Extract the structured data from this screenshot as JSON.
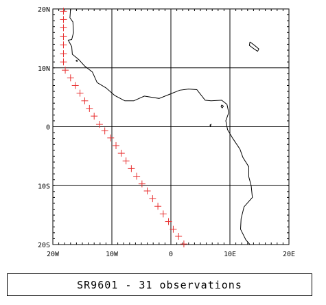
{
  "map": {
    "lon_range": [
      -20,
      20
    ],
    "lat_range": [
      -20,
      20
    ],
    "lon_ticks": [
      {
        "value": -20,
        "label": "20W"
      },
      {
        "value": -10,
        "label": "10W"
      },
      {
        "value": 0,
        "label": "0"
      },
      {
        "value": 10,
        "label": "10E"
      },
      {
        "value": 20,
        "label": "20E"
      }
    ],
    "lat_ticks": [
      {
        "value": 20,
        "label": "20N"
      },
      {
        "value": 10,
        "label": "10N"
      },
      {
        "value": 0,
        "label": "0"
      },
      {
        "value": -10,
        "label": "10S"
      },
      {
        "value": -20,
        "label": "20S"
      }
    ],
    "grid": true,
    "minor_tick_step_deg": 1,
    "colors": {
      "frame": "#000000",
      "coastline": "#000000",
      "observation_marker": "#e83030"
    },
    "marker_symbol": "plus",
    "observations_vertical": [
      [
        -18.2,
        19.6
      ],
      [
        -18.2,
        18.2
      ],
      [
        -18.2,
        16.8
      ],
      [
        -18.2,
        15.3
      ],
      [
        -18.2,
        13.9
      ],
      [
        -18.2,
        12.4
      ],
      [
        -18.2,
        11.0
      ]
    ],
    "observations_diagonal": [
      [
        -17.9,
        9.6
      ],
      [
        -17.0,
        8.3
      ],
      [
        -16.2,
        7.0
      ],
      [
        -15.4,
        5.7
      ],
      [
        -14.6,
        4.4
      ],
      [
        -13.8,
        3.1
      ],
      [
        -13.0,
        1.8
      ],
      [
        -12.1,
        0.4
      ],
      [
        -11.2,
        -0.7
      ],
      [
        -10.2,
        -1.9
      ],
      [
        -9.3,
        -3.2
      ],
      [
        -8.4,
        -4.5
      ],
      [
        -7.6,
        -5.8
      ],
      [
        -6.7,
        -7.1
      ],
      [
        -5.8,
        -8.4
      ],
      [
        -4.9,
        -9.7
      ],
      [
        -4.0,
        -10.9
      ],
      [
        -3.1,
        -12.2
      ],
      [
        -2.2,
        -13.5
      ],
      [
        -1.3,
        -14.8
      ],
      [
        -0.4,
        -16.1
      ],
      [
        0.4,
        -17.4
      ],
      [
        1.3,
        -18.6
      ],
      [
        2.2,
        -19.9
      ]
    ],
    "coastline": [
      [
        -17.0,
        20.0
      ],
      [
        -17.1,
        18.5
      ],
      [
        -16.6,
        17.8
      ],
      [
        -16.5,
        16.0
      ],
      [
        -16.8,
        14.8
      ],
      [
        -17.4,
        14.7
      ],
      [
        -16.8,
        13.6
      ],
      [
        -16.7,
        12.3
      ],
      [
        -15.6,
        11.4
      ],
      [
        -14.6,
        10.3
      ],
      [
        -13.3,
        9.3
      ],
      [
        -12.5,
        7.5
      ],
      [
        -11.0,
        6.6
      ],
      [
        -9.5,
        5.3
      ],
      [
        -7.8,
        4.4
      ],
      [
        -6.3,
        4.4
      ],
      [
        -4.5,
        5.2
      ],
      [
        -2.0,
        4.8
      ],
      [
        0.0,
        5.6
      ],
      [
        1.5,
        6.2
      ],
      [
        3.0,
        6.4
      ],
      [
        4.4,
        6.3
      ],
      [
        5.8,
        4.5
      ],
      [
        6.8,
        4.4
      ],
      [
        8.6,
        4.5
      ],
      [
        9.5,
        3.8
      ],
      [
        9.8,
        2.4
      ],
      [
        9.3,
        1.0
      ],
      [
        9.6,
        -0.5
      ],
      [
        10.5,
        -2.0
      ],
      [
        11.7,
        -3.8
      ],
      [
        12.2,
        -5.2
      ],
      [
        13.2,
        -6.8
      ],
      [
        13.2,
        -8.5
      ],
      [
        13.6,
        -10.0
      ],
      [
        13.8,
        -12.0
      ],
      [
        12.4,
        -13.6
      ],
      [
        11.9,
        -15.6
      ],
      [
        11.8,
        -17.4
      ],
      [
        12.7,
        -19.2
      ],
      [
        13.4,
        -20.0
      ]
    ],
    "islands": [
      {
        "name": "sao-tome",
        "points": [
          [
            6.6,
            0.3
          ],
          [
            6.8,
            0.4
          ],
          [
            6.7,
            0.1
          ],
          [
            6.6,
            0.3
          ]
        ]
      },
      {
        "name": "bioko",
        "points": [
          [
            8.6,
            3.7
          ],
          [
            8.9,
            3.5
          ],
          [
            8.7,
            3.2
          ],
          [
            8.5,
            3.4
          ],
          [
            8.6,
            3.7
          ]
        ]
      },
      {
        "name": "bissagos",
        "points": [
          [
            -16.1,
            11.2
          ],
          [
            -15.9,
            11.3
          ],
          [
            -15.9,
            11.1
          ],
          [
            -16.1,
            11.2
          ]
        ]
      },
      {
        "name": "lake-chad",
        "points": [
          [
            13.4,
            14.4
          ],
          [
            14.2,
            13.8
          ],
          [
            14.9,
            13.2
          ],
          [
            14.7,
            12.8
          ],
          [
            14.1,
            13.2
          ],
          [
            13.3,
            13.8
          ],
          [
            13.4,
            14.4
          ]
        ]
      }
    ]
  },
  "caption": {
    "text": "SR9601 - 31 observations"
  }
}
